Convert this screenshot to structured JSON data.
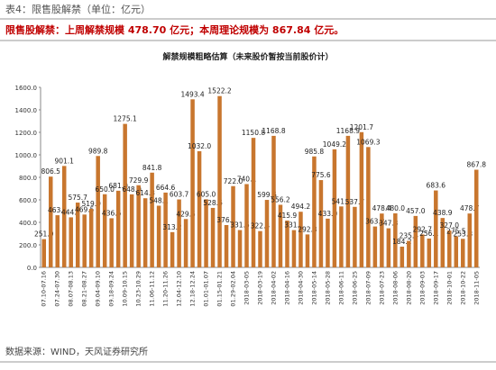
{
  "header": "表4：限售股解禁（单位：亿元）",
  "banner": "限售股解禁：上周解禁规模 478.70 亿元；本周理论规模为 867.84 亿元。",
  "source": "数据来源：WIND，天风证券研究所",
  "chart_data": {
    "type": "bar",
    "title": "解禁规模粗略估算（未来股价暂按当前股价计）",
    "color": "#c8762e",
    "categories": [
      "07.10-07.16",
      null,
      "07.24-07.30",
      null,
      "08.07-08.13",
      null,
      "08.21-08.27",
      null,
      "09.04-09.10",
      null,
      "09.18-09.24",
      null,
      "10.09-10.15",
      null,
      "10.23-10.29",
      null,
      "11.06-11.12",
      null,
      "11.20-11.26",
      null,
      "12.04-12.10",
      null,
      "12.18-12.24",
      null,
      "01.01-01.07",
      null,
      "01.15-01.21",
      null,
      "01.29-02.04",
      null,
      "2018-03-05",
      null,
      "2018-03-19",
      null,
      "2018-04-02",
      null,
      "2018-04-16",
      null,
      "2018-04-30",
      null,
      "2018-05-14",
      null,
      "2018-05-28",
      null,
      "2018-06-11",
      null,
      "2018-06-25",
      null,
      "2018-07-09",
      null,
      "2018-07-23",
      null,
      "2018-08-06",
      null,
      "2018-08-20",
      null,
      "2018-09-03",
      null,
      "2018-09-17",
      null,
      "2018-10-01",
      null,
      "2018-10-22",
      null,
      "2018-11-05"
    ],
    "values": [
      251.0,
      806.5,
      463.4,
      901.1,
      444.7,
      575.7,
      469.5,
      519.9,
      989.8,
      650.0,
      436.6,
      681.0,
      1275.1,
      648.9,
      729.9,
      614.3,
      841.8,
      548.1,
      664.6,
      313.2,
      603.7,
      429.5,
      1493.4,
      1032.0,
      605.0,
      528.6,
      1522.2,
      376.1,
      722.0,
      331.5,
      740.1,
      1150.8,
      322.4,
      599.6,
      1168.8,
      556.2,
      415.9,
      331.1,
      494.2,
      292.8,
      985.8,
      775.6,
      433.0,
      1049.2,
      541.5,
      1168.9,
      537.7,
      1201.7,
      1069.3,
      363.2,
      478.4,
      347.3,
      480.0,
      184.2,
      235.4,
      457.0,
      292.7,
      256.1,
      683.6,
      438.9,
      327.0,
      275.5,
      253.8,
      478.7,
      867.8
    ],
    "value_labels": [
      "251.0",
      "806.5",
      "463.4",
      "901.1",
      "444.7",
      "575.7",
      "469.5",
      "519.9",
      "989.8",
      "650.0",
      "436.6",
      "681.0",
      "1275.1",
      "648.9",
      "729.9",
      "614.3",
      "841.8",
      "548.1",
      "664.6",
      "313.2",
      "603.7",
      "429.5",
      "1493.4",
      "1032.0",
      "605.0",
      "528.6",
      "1522.2",
      "376.1",
      "722.0",
      "331.5",
      "740.1",
      "1150.8",
      "322.4",
      "599.6",
      "1168.8",
      "556.2",
      "415.9",
      "331.1",
      "494.2",
      "292.8",
      "985.8",
      "775.6",
      "433.0",
      "1049.2",
      "541.5",
      "1168.9",
      "537.7",
      "1201.7",
      "1069.3",
      "363.2",
      "478.4",
      "347.3",
      "480.0",
      "184.2",
      "235.4",
      "457.0",
      "292.7",
      "256.1",
      "683.6",
      "438.9",
      "327.0",
      "275.5",
      "253.8",
      "478.7",
      "867.8"
    ],
    "ylim": [
      0,
      1600
    ],
    "yticks": [
      {
        "value": 0,
        "label": "0.0"
      },
      {
        "value": 200,
        "label": "200.0"
      },
      {
        "value": 400,
        "label": "400.0"
      },
      {
        "value": 600,
        "label": "600.0"
      },
      {
        "value": 800,
        "label": "800.0"
      },
      {
        "value": 1000,
        "label": "1000.0"
      },
      {
        "value": 1200,
        "label": "1200.0"
      },
      {
        "value": 1400,
        "label": "1400.0"
      },
      {
        "value": 1600,
        "label": "1600.0"
      }
    ]
  }
}
